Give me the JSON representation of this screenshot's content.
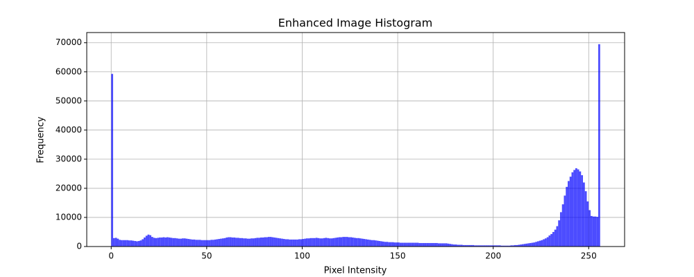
{
  "chart_data": {
    "type": "histogram",
    "title": "Enhanced Image Histogram",
    "x_label": "Pixel Intensity",
    "y_label": "Frequency",
    "color": "#0000ff",
    "alpha": 0.7,
    "grid": true,
    "xlim": [
      -12.8,
      268.8
    ],
    "ylim": [
      0,
      73500
    ],
    "xticks": [
      0,
      50,
      100,
      150,
      200,
      250
    ],
    "yticks": [
      0,
      10000,
      20000,
      30000,
      40000,
      50000,
      60000,
      70000
    ],
    "bins": [
      0,
      1,
      2,
      3,
      4,
      5,
      6,
      7,
      8,
      9,
      10,
      11,
      12,
      13,
      14,
      15,
      16,
      17,
      18,
      19,
      20,
      21,
      22,
      23,
      24,
      25,
      26,
      27,
      28,
      29,
      30,
      31,
      32,
      33,
      34,
      35,
      36,
      37,
      38,
      39,
      40,
      41,
      42,
      43,
      44,
      45,
      46,
      47,
      48,
      49,
      50,
      51,
      52,
      53,
      54,
      55,
      56,
      57,
      58,
      59,
      60,
      61,
      62,
      63,
      64,
      65,
      66,
      67,
      68,
      69,
      70,
      71,
      72,
      73,
      74,
      75,
      76,
      77,
      78,
      79,
      80,
      81,
      82,
      83,
      84,
      85,
      86,
      87,
      88,
      89,
      90,
      91,
      92,
      93,
      94,
      95,
      96,
      97,
      98,
      99,
      100,
      101,
      102,
      103,
      104,
      105,
      106,
      107,
      108,
      109,
      110,
      111,
      112,
      113,
      114,
      115,
      116,
      117,
      118,
      119,
      120,
      121,
      122,
      123,
      124,
      125,
      126,
      127,
      128,
      129,
      130,
      131,
      132,
      133,
      134,
      135,
      136,
      137,
      138,
      139,
      140,
      141,
      142,
      143,
      144,
      145,
      146,
      147,
      148,
      149,
      150,
      151,
      152,
      153,
      154,
      155,
      156,
      157,
      158,
      159,
      160,
      161,
      162,
      163,
      164,
      165,
      166,
      167,
      168,
      169,
      170,
      171,
      172,
      173,
      174,
      175,
      176,
      177,
      178,
      179,
      180,
      181,
      182,
      183,
      184,
      185,
      186,
      187,
      188,
      189,
      190,
      191,
      192,
      193,
      194,
      195,
      196,
      197,
      198,
      199,
      200,
      201,
      202,
      203,
      204,
      205,
      206,
      207,
      208,
      209,
      210,
      211,
      212,
      213,
      214,
      215,
      216,
      217,
      218,
      219,
      220,
      221,
      222,
      223,
      224,
      225,
      226,
      227,
      228,
      229,
      230,
      231,
      232,
      233,
      234,
      235,
      236,
      237,
      238,
      239,
      240,
      241,
      242,
      243,
      244,
      245,
      246,
      247,
      248,
      249,
      250,
      251,
      252,
      253,
      254,
      255,
      256
    ],
    "counts": [
      59300,
      2900,
      3000,
      2700,
      2300,
      2200,
      2200,
      2200,
      2200,
      2100,
      2100,
      2000,
      1900,
      1800,
      1900,
      2100,
      2500,
      3100,
      3700,
      4100,
      3900,
      3300,
      3000,
      2900,
      3000,
      3100,
      3100,
      3200,
      3100,
      3200,
      3100,
      3000,
      2900,
      2900,
      2800,
      2700,
      2700,
      2800,
      2800,
      2700,
      2600,
      2500,
      2400,
      2400,
      2300,
      2300,
      2300,
      2200,
      2200,
      2200,
      2200,
      2200,
      2300,
      2300,
      2400,
      2500,
      2600,
      2700,
      2800,
      2900,
      3100,
      3200,
      3200,
      3100,
      3100,
      3000,
      3000,
      2900,
      2900,
      2800,
      2800,
      2700,
      2700,
      2800,
      2800,
      2900,
      3000,
      3000,
      3100,
      3100,
      3200,
      3200,
      3300,
      3300,
      3200,
      3100,
      3000,
      2900,
      2800,
      2700,
      2600,
      2500,
      2500,
      2400,
      2400,
      2400,
      2400,
      2400,
      2500,
      2500,
      2600,
      2700,
      2800,
      2800,
      2900,
      2900,
      2900,
      3000,
      2900,
      2800,
      2800,
      2900,
      3000,
      2900,
      2800,
      2800,
      2900,
      3000,
      3100,
      3200,
      3200,
      3300,
      3300,
      3300,
      3200,
      3200,
      3100,
      3000,
      2900,
      2900,
      2800,
      2700,
      2600,
      2500,
      2400,
      2300,
      2200,
      2200,
      2100,
      2000,
      1900,
      1800,
      1700,
      1600,
      1600,
      1500,
      1500,
      1500,
      1400,
      1400,
      1400,
      1300,
      1300,
      1300,
      1300,
      1300,
      1300,
      1300,
      1300,
      1300,
      1300,
      1200,
      1200,
      1200,
      1200,
      1200,
      1200,
      1200,
      1200,
      1200,
      1200,
      1100,
      1100,
      1100,
      1100,
      1100,
      1000,
      900,
      800,
      700,
      700,
      600,
      600,
      600,
      500,
      500,
      500,
      500,
      500,
      500,
      400,
      400,
      400,
      400,
      400,
      400,
      400,
      400,
      400,
      400,
      400,
      400,
      400,
      400,
      300,
      300,
      300,
      300,
      300,
      400,
      400,
      500,
      500,
      600,
      700,
      800,
      900,
      1000,
      1100,
      1200,
      1300,
      1400,
      1600,
      1800,
      2000,
      2200,
      2500,
      2800,
      3200,
      3800,
      4300,
      5000,
      5800,
      7000,
      9000,
      11800,
      14500,
      17500,
      20500,
      22500,
      24000,
      25500,
      26300,
      26900,
      26500,
      25800,
      24500,
      22000,
      19000,
      15500,
      12500,
      10500,
      10300,
      10300,
      10200,
      69500
    ]
  }
}
